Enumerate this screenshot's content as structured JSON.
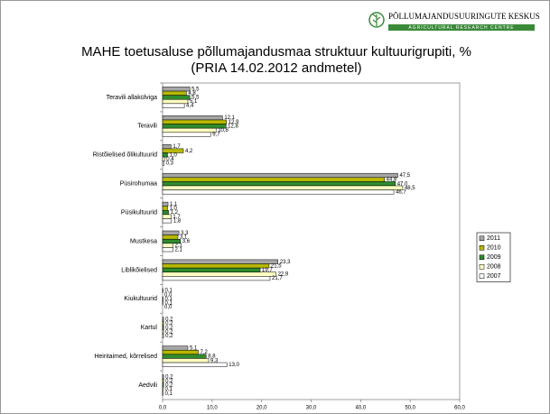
{
  "header": {
    "org_name": "PÕLLUMAJANDUSUURINGUTE KESKUS",
    "org_name_en": "AGRICULTURAL RESEARCH CENTRE"
  },
  "chart_data": {
    "type": "hbar",
    "title": "MAHE toetusaluse põllumajandusmaa struktuur kultuurigrupiti, %",
    "subtitle": "(PRIA 14.02.2012 andmetel)",
    "categories": [
      "Teravili allakülviga",
      "Teravili",
      "Ristõielised õlikultuurid",
      "Püsirohumaa",
      "Püsikultuurid",
      "Mustkesa",
      "Liblikõielised",
      "Kiukultuurid",
      "Kartul",
      "Heintaimed, kõrrelised",
      "Aedvili"
    ],
    "series": [
      {
        "name": "2011",
        "color": "#a6a6a6",
        "values": [
          5.5,
          12.1,
          1.7,
          47.5,
          1.1,
          3.3,
          23.3,
          0.1,
          0.2,
          5.1,
          0.2
        ],
        "value_labels": [
          "5,5",
          "12,1",
          "1,7",
          "47,5",
          "1,1",
          "3,3",
          "23,3",
          "0,1",
          "0,2",
          "5,1",
          "0,2"
        ]
      },
      {
        "name": "2010",
        "color": "#b8b800",
        "values": [
          4.8,
          12.9,
          4.2,
          44.8,
          1.0,
          3.1,
          21.5,
          0.0,
          0.2,
          7.2,
          0.2
        ],
        "value_labels": [
          "4,8",
          "12,9",
          "4,2",
          "44,8",
          "1,0",
          "3,1",
          "21,5",
          "0,0",
          "0,2",
          "7,2",
          "0,2"
        ]
      },
      {
        "name": "2009",
        "color": "#2e8b2e",
        "values": [
          5.5,
          12.8,
          1.0,
          47.0,
          1.2,
          3.6,
          19.7,
          0.1,
          0.2,
          8.8,
          0.2
        ],
        "value_labels": [
          "5,5",
          "12,8",
          "1,0",
          "47,0",
          "1,2",
          "3,6",
          "19,7",
          "0,1",
          "0,2",
          "8,8",
          "0,2"
        ]
      },
      {
        "name": "2008",
        "color": "#ffffc0",
        "values": [
          5.1,
          10.8,
          0.4,
          48.5,
          1.7,
          2.1,
          22.9,
          0.1,
          0.2,
          9.3,
          0.1
        ],
        "value_labels": [
          "5,1",
          "10,8",
          "0,4",
          "48,5",
          "1,7",
          "2,1",
          "22,9",
          "0,1",
          "0,2",
          "9,3",
          "0,1"
        ]
      },
      {
        "name": "2007",
        "color": "#ffffff",
        "values": [
          4.4,
          9.7,
          0.3,
          46.7,
          1.8,
          2.1,
          21.7,
          0.0,
          0.2,
          13.0,
          0.1
        ],
        "value_labels": [
          "4,4",
          "9,7",
          "0,3",
          "46,7",
          "1,8",
          "2,1",
          "21,7",
          "0,0",
          "0,2",
          "13,0",
          "0,1"
        ]
      }
    ],
    "xlim": [
      0,
      60
    ],
    "xticks": [
      {
        "value": 0,
        "label": "0,0"
      },
      {
        "value": 10,
        "label": "10,0"
      },
      {
        "value": 20,
        "label": "20,0"
      },
      {
        "value": 30,
        "label": "30,0"
      },
      {
        "value": 40,
        "label": "40,0"
      },
      {
        "value": 50,
        "label": "50,0"
      },
      {
        "value": 60,
        "label": "60,0"
      }
    ],
    "legend": "right"
  }
}
